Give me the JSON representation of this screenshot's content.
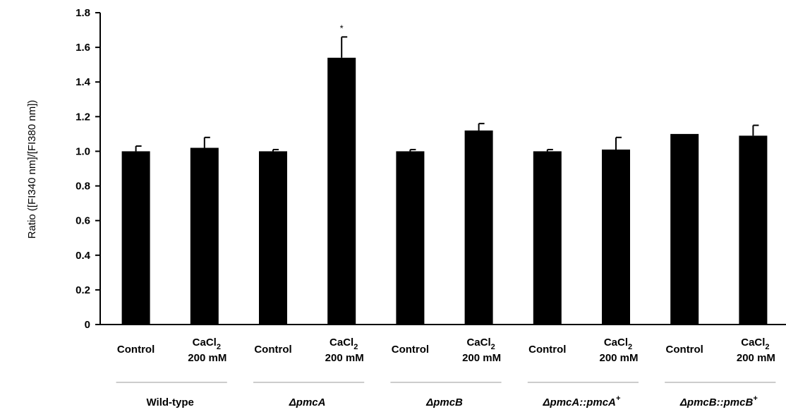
{
  "chart_data": {
    "type": "bar",
    "ylabel": "Ratio ([FI340 nm]/[FI380 nm])",
    "ylim": [
      0,
      1.8
    ],
    "yticks": [
      "0",
      "0.2",
      "0.4",
      "0.6",
      "0.8",
      "1.0",
      "1.2",
      "1.4",
      "1.6",
      "1.8"
    ],
    "categories": [
      {
        "main": "Control",
        "sub": "CaCl",
        "subscript": "",
        "line2": ""
      },
      {
        "main": "CaCl",
        "subscript": "2",
        "line2": "200 mM"
      },
      {
        "main": "Control",
        "subscript": "",
        "line2": ""
      },
      {
        "main": "CaCl",
        "subscript": "2",
        "line2": "200 mM"
      },
      {
        "main": "Control",
        "subscript": "",
        "line2": ""
      },
      {
        "main": "CaCl",
        "subscript": "2",
        "line2": "200 mM"
      },
      {
        "main": "Control",
        "subscript": "",
        "line2": ""
      },
      {
        "main": "CaCl",
        "subscript": "2",
        "line2": "200 mM"
      },
      {
        "main": "Control",
        "subscript": "",
        "line2": ""
      },
      {
        "main": "CaCl",
        "subscript": "2",
        "line2": "200 mM"
      }
    ],
    "values": [
      1.0,
      1.02,
      1.0,
      1.54,
      1.0,
      1.12,
      1.0,
      1.01,
      1.1,
      1.09
    ],
    "errors": [
      0.03,
      0.06,
      0.01,
      0.12,
      0.01,
      0.04,
      0.01,
      0.07,
      0.0,
      0.06
    ],
    "annotations": [
      {
        "index": 3,
        "text": "*"
      }
    ],
    "groups": [
      {
        "prefix": "Wild-type",
        "sup": "",
        "italic": false
      },
      {
        "prefix": "ΔpmcA",
        "sup": "",
        "italic": true
      },
      {
        "prefix": "ΔpmcB",
        "sup": "",
        "italic": true
      },
      {
        "prefix": "ΔpmcA::pmcA",
        "sup": "+",
        "italic": true
      },
      {
        "prefix": "ΔpmcB::pmcB",
        "sup": "+",
        "italic": true
      }
    ],
    "bar_color": "#000000"
  }
}
